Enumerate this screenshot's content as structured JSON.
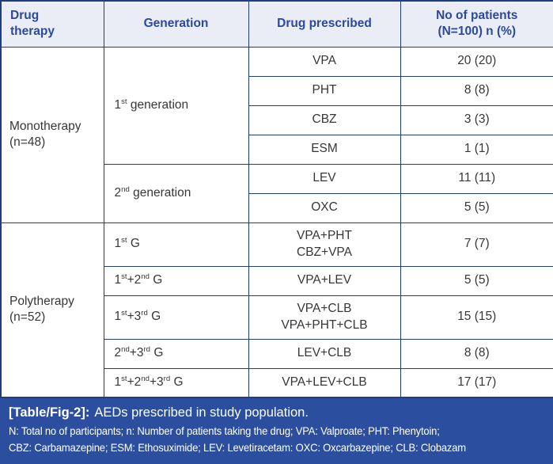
{
  "colors": {
    "border": "#1f3e7f",
    "header_bg": "#eaecf6",
    "header_text": "#2b4a9b",
    "body_text": "#373737",
    "footer_bg": "#2b4f9e",
    "footer_text": "#ffffff",
    "cell_bg": "#ffffff"
  },
  "chart_data": {
    "type": "table",
    "title": "[Table/Fig-2]: AEDs prescribed in study population.",
    "columns": [
      "Drug therapy",
      "Generation",
      "Drug prescribed",
      "No of patients (N=100) n (%)"
    ],
    "rows": [
      [
        "Monotherapy (n=48)",
        "1st generation",
        "VPA",
        "20 (20)"
      ],
      [
        "Monotherapy (n=48)",
        "1st generation",
        "PHT",
        "8 (8)"
      ],
      [
        "Monotherapy (n=48)",
        "1st generation",
        "CBZ",
        "3 (3)"
      ],
      [
        "Monotherapy (n=48)",
        "1st generation",
        "ESM",
        "1 (1)"
      ],
      [
        "Monotherapy (n=48)",
        "2nd generation",
        "LEV",
        "11 (11)"
      ],
      [
        "Monotherapy (n=48)",
        "2nd generation",
        "OXC",
        "5 (5)"
      ],
      [
        "Polytherapy (n=52)",
        "1st G",
        "VPA+PHT CBZ+VPA",
        "7 (7)"
      ],
      [
        "Polytherapy (n=52)",
        "1st+2nd G",
        "VPA+LEV",
        "5 (5)"
      ],
      [
        "Polytherapy (n=52)",
        "1st+3rd G",
        "VPA+CLB VPA+PHT+CLB",
        "15 (15)"
      ],
      [
        "Polytherapy (n=52)",
        "2nd+3rd G",
        "LEV+CLB",
        "8 (8)"
      ],
      [
        "Polytherapy (n=52)",
        "1st+2nd+3rd G",
        "VPA+LEV+CLB",
        "17 (17)"
      ]
    ]
  },
  "table": {
    "headers": [
      "Drug\ntherapy",
      "Generation",
      "Drug prescribed",
      "No of patients\n(N=100) n (%)"
    ],
    "rows": [
      {
        "therapy": "Monotherapy\n(n=48)",
        "generation": "1^st^ generation",
        "drug": "VPA",
        "patients": "20 (20)"
      },
      {
        "drug": "PHT",
        "patients": "8 (8)"
      },
      {
        "drug": "CBZ",
        "patients": "3 (3)"
      },
      {
        "drug": "ESM",
        "patients": "1 (1)"
      },
      {
        "generation": "2^nd^ generation",
        "drug": "LEV",
        "patients": "11 (11)"
      },
      {
        "drug": "OXC",
        "patients": "5 (5)"
      },
      {
        "therapy": "Polytherapy\n(n=52)",
        "generation": "1^st^ G",
        "drug": "VPA+PHT\nCBZ+VPA",
        "patients": "7 (7)"
      },
      {
        "generation": "1^st^+2^nd^ G",
        "drug": "VPA+LEV",
        "patients": "5 (5)"
      },
      {
        "generation": "1^st^+3^rd^ G",
        "drug": "VPA+CLB\nVPA+PHT+CLB",
        "patients": "15 (15)"
      },
      {
        "generation": "2^nd^+3^rd^ G",
        "drug": "LEV+CLB",
        "patients": "8 (8)"
      },
      {
        "generation": "1^st^+2^nd^+3^rd^ G",
        "drug": "VPA+LEV+CLB",
        "patients": "17 (17)"
      }
    ]
  },
  "caption": {
    "label": "[Table/Fig-2]:",
    "text": "AEDs prescribed in study population."
  },
  "notes": [
    "N: Total no of participants; n: Number of patients taking the drug; VPA: Valproate; PHT: Phenytoin;",
    "CBZ: Carbamazepine; ESM: Ethosuximide; LEV: Levetiracetam: OXC: Oxcarbazepine; CLB: Clobazam"
  ]
}
